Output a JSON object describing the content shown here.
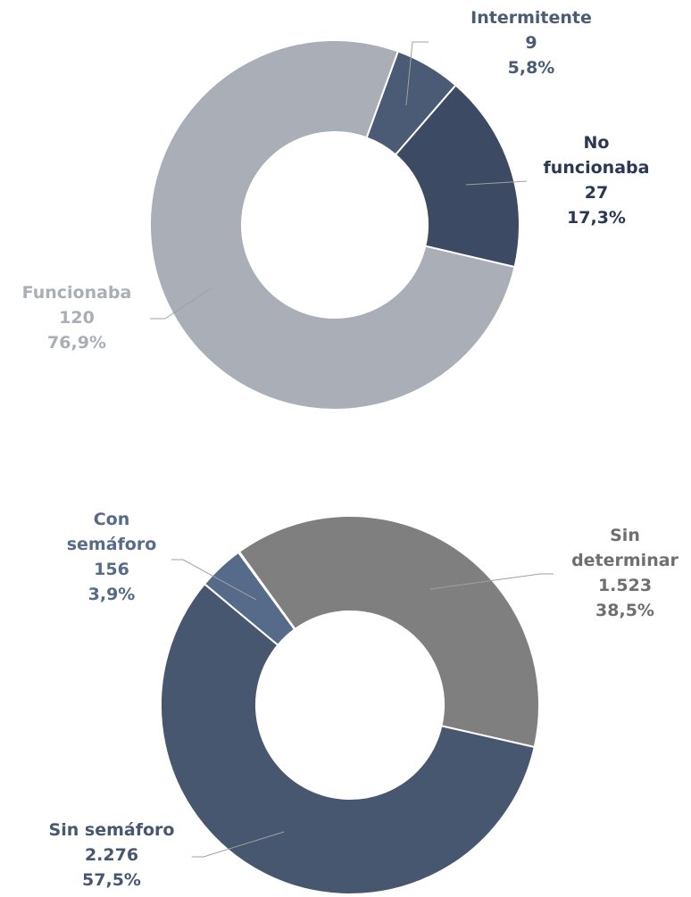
{
  "chart_data": [
    {
      "type": "donut",
      "categories": [
        "Intermitente",
        "No funcionaba",
        "Funcionaba"
      ],
      "values": [
        9,
        27,
        120
      ],
      "percentages": [
        5.8,
        17.3,
        76.9
      ],
      "percent_labels": [
        "5,8%",
        "17,3%",
        "76,9%"
      ],
      "colors": [
        "#4b5b76",
        "#3c4a63",
        "#a9aeb7"
      ],
      "label_colors": [
        "#4b5b76",
        "#2b3753",
        "#a9aeb7"
      ]
    },
    {
      "type": "donut",
      "categories": [
        "Sin determinar",
        "Sin semáforo",
        "Con semáforo"
      ],
      "values": [
        1523,
        2276,
        156
      ],
      "value_labels": [
        "1.523",
        "2.276",
        "156"
      ],
      "percentages": [
        38.5,
        57.5,
        3.9
      ],
      "percent_labels": [
        "38,5%",
        "57,5%",
        "3,9%"
      ],
      "colors": [
        "#7f7f7f",
        "#475770",
        "#566b8a"
      ],
      "label_colors": [
        "#6f6f6f",
        "#475770",
        "#566b8a"
      ]
    }
  ]
}
